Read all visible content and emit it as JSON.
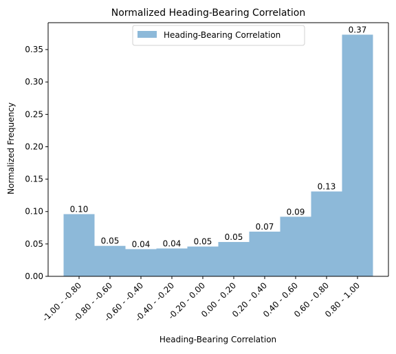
{
  "chart_data": {
    "type": "bar",
    "title": "Normalized Heading-Bearing Correlation",
    "xlabel": "Heading-Bearing Correlation",
    "ylabel": "Normalized Frequency",
    "categories": [
      "-1.00 - -0.80",
      "-0.80 - -0.60",
      "-0.60 - -0.40",
      "-0.40 - -0.20",
      "-0.20 - 0.00",
      "0.00 - 0.20",
      "0.20 - 0.40",
      "0.40 - 0.60",
      "0.60 - 0.80",
      "0.80 - 1.00"
    ],
    "values": [
      0.096,
      0.047,
      0.042,
      0.043,
      0.046,
      0.053,
      0.069,
      0.092,
      0.131,
      0.373
    ],
    "data_labels": [
      "0.10",
      "0.05",
      "0.04",
      "0.04",
      "0.05",
      "0.05",
      "0.07",
      "0.09",
      "0.13",
      "0.37"
    ],
    "yticks": [
      0.0,
      0.05,
      0.1,
      0.15,
      0.2,
      0.25,
      0.3,
      0.35
    ],
    "ytick_labels": [
      "0.00",
      "0.05",
      "0.10",
      "0.15",
      "0.20",
      "0.25",
      "0.30",
      "0.35"
    ],
    "ylim": [
      0,
      0.3915
    ],
    "legend": {
      "entries": [
        "Heading-Bearing Correlation"
      ],
      "placement": "upper center"
    },
    "colors": {
      "bar": "#8db9d9",
      "axis": "#000000",
      "text": "#000000"
    },
    "grid": false
  }
}
